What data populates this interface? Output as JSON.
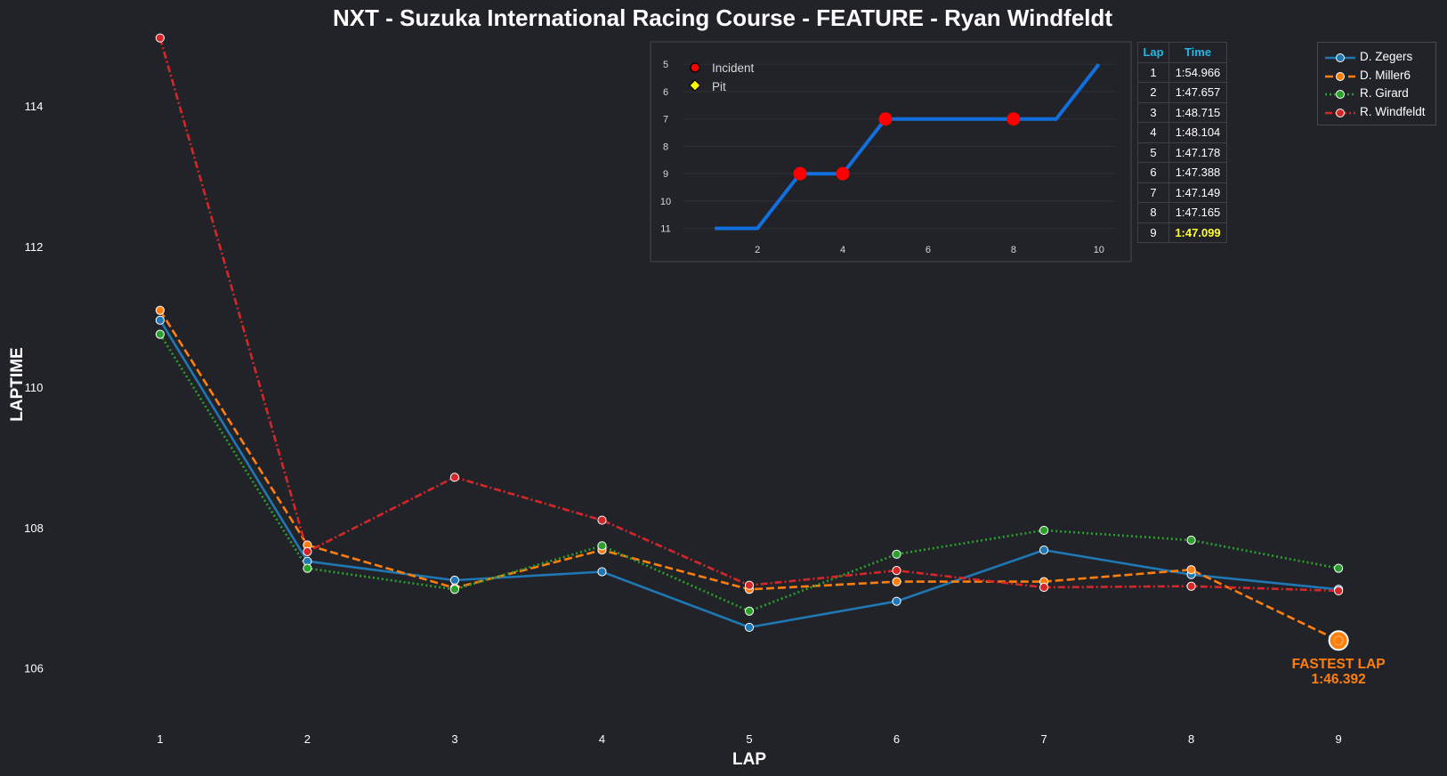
{
  "chart_data": [
    {
      "type": "line",
      "title": "NXT - Suzuka International Racing Course - FEATURE - Ryan Windfeldt",
      "xlabel": "LAP",
      "ylabel": "LAPTIME",
      "x": [
        1,
        2,
        3,
        4,
        5,
        6,
        7,
        8,
        9
      ],
      "xlim": [
        0.3,
        9.7
      ],
      "ylim": [
        105.3,
        115.0
      ],
      "yticks": [
        106,
        108,
        110,
        112,
        114
      ],
      "grid": false,
      "legend_position": "top-right",
      "series": [
        {
          "name": "D. Zegers",
          "color": "#1f77b4",
          "style": "solid",
          "values": [
            110.95,
            107.52,
            107.25,
            107.37,
            106.58,
            106.95,
            107.68,
            107.33,
            107.12
          ]
        },
        {
          "name": "D. Miller6",
          "color": "#ff7f0e",
          "style": "dashed",
          "values": [
            111.09,
            107.75,
            107.14,
            107.68,
            107.12,
            107.23,
            107.23,
            107.4,
            106.392
          ]
        },
        {
          "name": "R. Girard",
          "color": "#2ca02c",
          "style": "dotted",
          "values": [
            110.75,
            107.42,
            107.12,
            107.74,
            106.81,
            107.62,
            107.96,
            107.82,
            107.42
          ]
        },
        {
          "name": "R. Windfeldt",
          "color": "#d62728",
          "style": "dashdot",
          "values": [
            114.966,
            107.657,
            108.715,
            108.104,
            107.178,
            107.388,
            107.149,
            107.165,
            107.099
          ]
        }
      ],
      "annotation": {
        "label": "FASTEST LAP",
        "value": "1:46.392",
        "x": 9,
        "y": 106.392,
        "color": "#ff7f0e"
      }
    },
    {
      "type": "line",
      "title": "",
      "x": [
        1,
        2,
        3,
        4,
        5,
        6,
        7,
        8,
        9,
        10
      ],
      "values": [
        11,
        11,
        9,
        9,
        7,
        7,
        7,
        7,
        7,
        5
      ],
      "xlim": [
        0.1,
        10.4
      ],
      "ylim": [
        11.5,
        4.7
      ],
      "y_inverted": true,
      "xticks": [
        2,
        4,
        6,
        8,
        10
      ],
      "yticks": [
        5,
        6,
        7,
        8,
        9,
        10,
        11
      ],
      "line_color": "#1170dd",
      "events": [
        {
          "type": "Incident",
          "lap": 3,
          "position": 9
        },
        {
          "type": "Incident",
          "lap": 4,
          "position": 9
        },
        {
          "type": "Incident",
          "lap": 5,
          "position": 7
        },
        {
          "type": "Incident",
          "lap": 8,
          "position": 7
        }
      ],
      "legend": [
        {
          "label": "Incident",
          "marker": "circle",
          "color": "#ff0000"
        },
        {
          "label": "Pit",
          "marker": "diamond",
          "color": "#ffff00"
        }
      ]
    }
  ],
  "lap_table": {
    "headers": [
      "Lap",
      "Time"
    ],
    "rows": [
      {
        "lap": "1",
        "time": "1:54.966"
      },
      {
        "lap": "2",
        "time": "1:47.657"
      },
      {
        "lap": "3",
        "time": "1:48.715"
      },
      {
        "lap": "4",
        "time": "1:48.104"
      },
      {
        "lap": "5",
        "time": "1:47.178"
      },
      {
        "lap": "6",
        "time": "1:47.388"
      },
      {
        "lap": "7",
        "time": "1:47.149"
      },
      {
        "lap": "8",
        "time": "1:47.165"
      },
      {
        "lap": "9",
        "time": "1:47.099"
      }
    ],
    "fastest_row": 8
  }
}
